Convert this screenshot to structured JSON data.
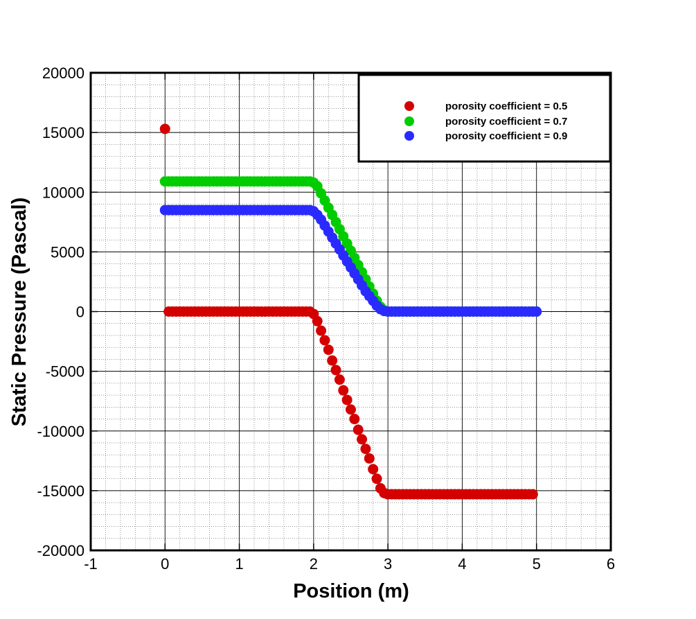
{
  "chart_data": {
    "type": "scatter",
    "xlabel": "Position (m)",
    "ylabel": "Static Pressure (Pascal)",
    "xlim": [
      -1,
      6
    ],
    "ylim": [
      -20000,
      20000
    ],
    "xticks": [
      "-1",
      "0",
      "1",
      "2",
      "3",
      "4",
      "5",
      "6"
    ],
    "yticks": [
      "20000",
      "15000",
      "10000",
      "5000",
      "0",
      "-5000",
      "-10000",
      "-15000",
      "-20000"
    ],
    "grid": true,
    "legend_position": "top-right",
    "series": [
      {
        "name": "porosity coefficient = 0.5",
        "color": "#d40000",
        "points": [
          [
            0,
            15300
          ],
          [
            0.05,
            0
          ],
          [
            0.1,
            0
          ],
          [
            0.15,
            0
          ],
          [
            0.2,
            0
          ],
          [
            0.25,
            0
          ],
          [
            0.3,
            0
          ],
          [
            0.35,
            0
          ],
          [
            0.4,
            0
          ],
          [
            0.45,
            0
          ],
          [
            0.5,
            0
          ],
          [
            0.55,
            0
          ],
          [
            0.6,
            0
          ],
          [
            0.65,
            0
          ],
          [
            0.7,
            0
          ],
          [
            0.75,
            0
          ],
          [
            0.8,
            0
          ],
          [
            0.85,
            0
          ],
          [
            0.9,
            0
          ],
          [
            0.95,
            0
          ],
          [
            1.0,
            0
          ],
          [
            1.05,
            0
          ],
          [
            1.1,
            0
          ],
          [
            1.15,
            0
          ],
          [
            1.2,
            0
          ],
          [
            1.25,
            0
          ],
          [
            1.3,
            0
          ],
          [
            1.35,
            0
          ],
          [
            1.4,
            0
          ],
          [
            1.45,
            0
          ],
          [
            1.5,
            0
          ],
          [
            1.55,
            0
          ],
          [
            1.6,
            0
          ],
          [
            1.65,
            0
          ],
          [
            1.7,
            0
          ],
          [
            1.75,
            0
          ],
          [
            1.8,
            0
          ],
          [
            1.85,
            0
          ],
          [
            1.9,
            0
          ],
          [
            1.95,
            0
          ],
          [
            2.0,
            -200
          ],
          [
            2.05,
            -800
          ],
          [
            2.1,
            -1600
          ],
          [
            2.15,
            -2400
          ],
          [
            2.2,
            -3200
          ],
          [
            2.25,
            -4100
          ],
          [
            2.3,
            -4900
          ],
          [
            2.35,
            -5700
          ],
          [
            2.4,
            -6600
          ],
          [
            2.45,
            -7400
          ],
          [
            2.5,
            -8200
          ],
          [
            2.55,
            -9000
          ],
          [
            2.6,
            -9900
          ],
          [
            2.65,
            -10700
          ],
          [
            2.7,
            -11500
          ],
          [
            2.75,
            -12300
          ],
          [
            2.8,
            -13200
          ],
          [
            2.85,
            -14000
          ],
          [
            2.9,
            -14800
          ],
          [
            2.95,
            -15200
          ],
          [
            3.0,
            -15300
          ],
          [
            3.05,
            -15300
          ],
          [
            3.1,
            -15300
          ],
          [
            3.15,
            -15300
          ],
          [
            3.2,
            -15300
          ],
          [
            3.25,
            -15300
          ],
          [
            3.3,
            -15300
          ],
          [
            3.35,
            -15300
          ],
          [
            3.4,
            -15300
          ],
          [
            3.45,
            -15300
          ],
          [
            3.5,
            -15300
          ],
          [
            3.55,
            -15300
          ],
          [
            3.6,
            -15300
          ],
          [
            3.65,
            -15300
          ],
          [
            3.7,
            -15300
          ],
          [
            3.75,
            -15300
          ],
          [
            3.8,
            -15300
          ],
          [
            3.85,
            -15300
          ],
          [
            3.9,
            -15300
          ],
          [
            3.95,
            -15300
          ],
          [
            4.0,
            -15300
          ],
          [
            4.05,
            -15300
          ],
          [
            4.1,
            -15300
          ],
          [
            4.15,
            -15300
          ],
          [
            4.2,
            -15300
          ],
          [
            4.25,
            -15300
          ],
          [
            4.3,
            -15300
          ],
          [
            4.35,
            -15300
          ],
          [
            4.4,
            -15300
          ],
          [
            4.45,
            -15300
          ],
          [
            4.5,
            -15300
          ],
          [
            4.55,
            -15300
          ],
          [
            4.6,
            -15300
          ],
          [
            4.65,
            -15300
          ],
          [
            4.7,
            -15300
          ],
          [
            4.75,
            -15300
          ],
          [
            4.8,
            -15300
          ],
          [
            4.85,
            -15300
          ],
          [
            4.9,
            -15300
          ],
          [
            4.95,
            -15300
          ]
        ]
      },
      {
        "name": "porosity coefficient = 0.7",
        "color": "#00cc00",
        "points": [
          [
            0,
            10900
          ],
          [
            0.05,
            10900
          ],
          [
            0.1,
            10900
          ],
          [
            0.15,
            10900
          ],
          [
            0.2,
            10900
          ],
          [
            0.25,
            10900
          ],
          [
            0.3,
            10900
          ],
          [
            0.35,
            10900
          ],
          [
            0.4,
            10900
          ],
          [
            0.45,
            10900
          ],
          [
            0.5,
            10900
          ],
          [
            0.55,
            10900
          ],
          [
            0.6,
            10900
          ],
          [
            0.65,
            10900
          ],
          [
            0.7,
            10900
          ],
          [
            0.75,
            10900
          ],
          [
            0.8,
            10900
          ],
          [
            0.85,
            10900
          ],
          [
            0.9,
            10900
          ],
          [
            0.95,
            10900
          ],
          [
            1.0,
            10900
          ],
          [
            1.05,
            10900
          ],
          [
            1.1,
            10900
          ],
          [
            1.15,
            10900
          ],
          [
            1.2,
            10900
          ],
          [
            1.25,
            10900
          ],
          [
            1.3,
            10900
          ],
          [
            1.35,
            10900
          ],
          [
            1.4,
            10900
          ],
          [
            1.45,
            10900
          ],
          [
            1.5,
            10900
          ],
          [
            1.55,
            10900
          ],
          [
            1.6,
            10900
          ],
          [
            1.65,
            10900
          ],
          [
            1.7,
            10900
          ],
          [
            1.75,
            10900
          ],
          [
            1.8,
            10900
          ],
          [
            1.85,
            10900
          ],
          [
            1.9,
            10900
          ],
          [
            1.95,
            10900
          ],
          [
            2.0,
            10800
          ],
          [
            2.05,
            10500
          ],
          [
            2.1,
            9900
          ],
          [
            2.15,
            9300
          ],
          [
            2.2,
            8700
          ],
          [
            2.25,
            8100
          ],
          [
            2.3,
            7500
          ],
          [
            2.35,
            6900
          ],
          [
            2.4,
            6300
          ],
          [
            2.45,
            5700
          ],
          [
            2.5,
            5100
          ],
          [
            2.55,
            4500
          ],
          [
            2.6,
            3900
          ],
          [
            2.65,
            3300
          ],
          [
            2.7,
            2700
          ],
          [
            2.75,
            2100
          ],
          [
            2.8,
            1500
          ],
          [
            2.85,
            900
          ],
          [
            2.9,
            400
          ],
          [
            2.95,
            100
          ],
          [
            3.0,
            0
          ],
          [
            3.05,
            0
          ],
          [
            3.1,
            0
          ],
          [
            3.15,
            0
          ],
          [
            3.2,
            0
          ],
          [
            3.25,
            0
          ],
          [
            3.3,
            0
          ],
          [
            3.35,
            0
          ],
          [
            3.4,
            0
          ],
          [
            3.45,
            0
          ],
          [
            3.5,
            0
          ],
          [
            3.55,
            0
          ],
          [
            3.6,
            0
          ],
          [
            3.65,
            0
          ],
          [
            3.7,
            0
          ],
          [
            3.75,
            0
          ],
          [
            3.8,
            0
          ],
          [
            3.85,
            0
          ],
          [
            3.9,
            0
          ],
          [
            3.95,
            0
          ],
          [
            4.0,
            0
          ],
          [
            4.05,
            0
          ],
          [
            4.1,
            0
          ],
          [
            4.15,
            0
          ],
          [
            4.2,
            0
          ],
          [
            4.25,
            0
          ],
          [
            4.3,
            0
          ],
          [
            4.35,
            0
          ],
          [
            4.4,
            0
          ],
          [
            4.45,
            0
          ],
          [
            4.5,
            0
          ],
          [
            4.55,
            0
          ],
          [
            4.6,
            0
          ],
          [
            4.65,
            0
          ],
          [
            4.7,
            0
          ],
          [
            4.75,
            0
          ],
          [
            4.8,
            0
          ],
          [
            4.85,
            0
          ],
          [
            4.9,
            0
          ],
          [
            4.95,
            0
          ],
          [
            5.0,
            0
          ]
        ]
      },
      {
        "name": "porosity coefficient = 0.9",
        "color": "#2a2aff",
        "points": [
          [
            0,
            8500
          ],
          [
            0.05,
            8500
          ],
          [
            0.1,
            8500
          ],
          [
            0.15,
            8500
          ],
          [
            0.2,
            8500
          ],
          [
            0.25,
            8500
          ],
          [
            0.3,
            8500
          ],
          [
            0.35,
            8500
          ],
          [
            0.4,
            8500
          ],
          [
            0.45,
            8500
          ],
          [
            0.5,
            8500
          ],
          [
            0.55,
            8500
          ],
          [
            0.6,
            8500
          ],
          [
            0.65,
            8500
          ],
          [
            0.7,
            8500
          ],
          [
            0.75,
            8500
          ],
          [
            0.8,
            8500
          ],
          [
            0.85,
            8500
          ],
          [
            0.9,
            8500
          ],
          [
            0.95,
            8500
          ],
          [
            1.0,
            8500
          ],
          [
            1.05,
            8500
          ],
          [
            1.1,
            8500
          ],
          [
            1.15,
            8500
          ],
          [
            1.2,
            8500
          ],
          [
            1.25,
            8500
          ],
          [
            1.3,
            8500
          ],
          [
            1.35,
            8500
          ],
          [
            1.4,
            8500
          ],
          [
            1.45,
            8500
          ],
          [
            1.5,
            8500
          ],
          [
            1.55,
            8500
          ],
          [
            1.6,
            8500
          ],
          [
            1.65,
            8500
          ],
          [
            1.7,
            8500
          ],
          [
            1.75,
            8500
          ],
          [
            1.8,
            8500
          ],
          [
            1.85,
            8500
          ],
          [
            1.9,
            8500
          ],
          [
            1.95,
            8500
          ],
          [
            2.0,
            8400
          ],
          [
            2.05,
            8100
          ],
          [
            2.1,
            7700
          ],
          [
            2.15,
            7200
          ],
          [
            2.2,
            6700
          ],
          [
            2.25,
            6200
          ],
          [
            2.3,
            5700
          ],
          [
            2.35,
            5200
          ],
          [
            2.4,
            4700
          ],
          [
            2.45,
            4200
          ],
          [
            2.5,
            3700
          ],
          [
            2.55,
            3200
          ],
          [
            2.6,
            2700
          ],
          [
            2.65,
            2200
          ],
          [
            2.7,
            1700
          ],
          [
            2.75,
            1300
          ],
          [
            2.8,
            900
          ],
          [
            2.85,
            500
          ],
          [
            2.9,
            200
          ],
          [
            2.95,
            50
          ],
          [
            3.0,
            0
          ],
          [
            3.05,
            0
          ],
          [
            3.1,
            0
          ],
          [
            3.15,
            0
          ],
          [
            3.2,
            0
          ],
          [
            3.25,
            0
          ],
          [
            3.3,
            0
          ],
          [
            3.35,
            0
          ],
          [
            3.4,
            0
          ],
          [
            3.45,
            0
          ],
          [
            3.5,
            0
          ],
          [
            3.55,
            0
          ],
          [
            3.6,
            0
          ],
          [
            3.65,
            0
          ],
          [
            3.7,
            0
          ],
          [
            3.75,
            0
          ],
          [
            3.8,
            0
          ],
          [
            3.85,
            0
          ],
          [
            3.9,
            0
          ],
          [
            3.95,
            0
          ],
          [
            4.0,
            0
          ],
          [
            4.05,
            0
          ],
          [
            4.1,
            0
          ],
          [
            4.15,
            0
          ],
          [
            4.2,
            0
          ],
          [
            4.25,
            0
          ],
          [
            4.3,
            0
          ],
          [
            4.35,
            0
          ],
          [
            4.4,
            0
          ],
          [
            4.45,
            0
          ],
          [
            4.5,
            0
          ],
          [
            4.55,
            0
          ],
          [
            4.6,
            0
          ],
          [
            4.65,
            0
          ],
          [
            4.7,
            0
          ],
          [
            4.75,
            0
          ],
          [
            4.8,
            0
          ],
          [
            4.85,
            0
          ],
          [
            4.9,
            0
          ],
          [
            4.95,
            0
          ],
          [
            5.0,
            0
          ]
        ]
      }
    ]
  }
}
